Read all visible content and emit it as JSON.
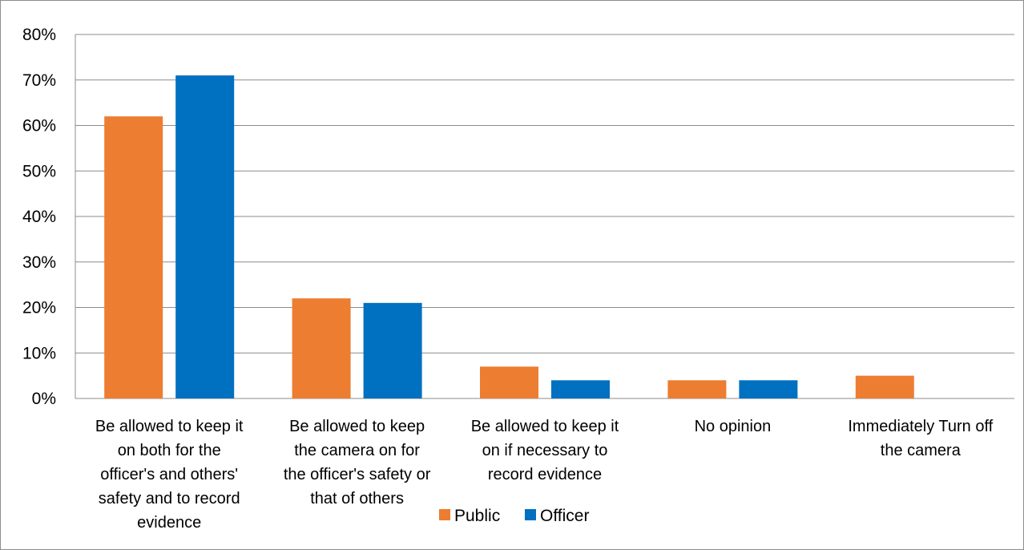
{
  "chart_data": {
    "type": "bar",
    "categories": [
      [
        "Be allowed to keep it",
        "on both for the",
        "officer's and others'",
        "safety and to record",
        "evidence"
      ],
      [
        "Be allowed to keep",
        "the camera on for",
        "the officer's safety or",
        "that of others"
      ],
      [
        "Be allowed to keep it",
        "on if necessary to",
        "record evidence"
      ],
      [
        "No opinion"
      ],
      [
        "Immediately Turn off",
        "the camera"
      ]
    ],
    "series": [
      {
        "name": "Public",
        "color": "#ED7D31",
        "values": [
          62,
          22,
          7,
          4,
          5
        ]
      },
      {
        "name": "Officer",
        "color": "#0070C0",
        "values": [
          71,
          21,
          4,
          4,
          0
        ]
      }
    ],
    "ylim": [
      0,
      80
    ],
    "yticks": [
      0,
      10,
      20,
      30,
      40,
      50,
      60,
      70,
      80
    ],
    "ytick_labels": [
      "0%",
      "10%",
      "20%",
      "30%",
      "40%",
      "50%",
      "60%",
      "70%",
      "80%"
    ],
    "grid": true,
    "legend": "bottom"
  }
}
